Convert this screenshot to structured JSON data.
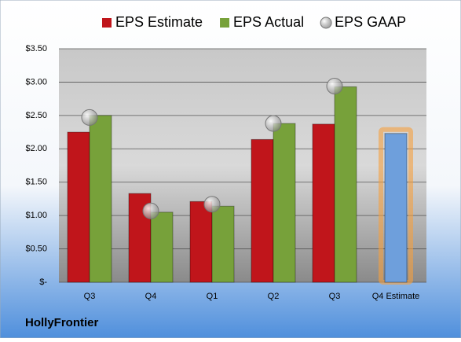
{
  "chart_data": {
    "type": "bar",
    "title": "HollyFrontier",
    "categories": [
      "Q3",
      "Q4",
      "Q1",
      "Q2",
      "Q3",
      "Q4 Estimate"
    ],
    "series": [
      {
        "name": "EPS Estimate",
        "color": "#c0151b",
        "values": [
          2.25,
          1.33,
          1.21,
          2.14,
          2.37,
          2.23
        ]
      },
      {
        "name": "EPS Actual",
        "color": "#77a13a",
        "values": [
          2.5,
          1.05,
          1.14,
          2.38,
          2.93,
          null
        ]
      },
      {
        "name": "EPS GAAP",
        "color": "#b8b8b8",
        "mark": "circle",
        "values": [
          2.47,
          1.07,
          1.17,
          2.38,
          2.94,
          null
        ]
      }
    ],
    "highlight": {
      "index": 5,
      "color": "#6e9fdc",
      "glow": "#f5a040"
    },
    "ylim": [
      0,
      3.5
    ],
    "yticks": [
      {
        "value": 0,
        "label": "$-"
      },
      {
        "value": 0.5,
        "label": "$0.50"
      },
      {
        "value": 1,
        "label": "$1.00"
      },
      {
        "value": 1.5,
        "label": "$1.50"
      },
      {
        "value": 2,
        "label": "$2.00"
      },
      {
        "value": 2.5,
        "label": "$2.50"
      },
      {
        "value": 3,
        "label": "$3.00"
      },
      {
        "value": 3.5,
        "label": "$3.50"
      }
    ],
    "grid": true
  }
}
